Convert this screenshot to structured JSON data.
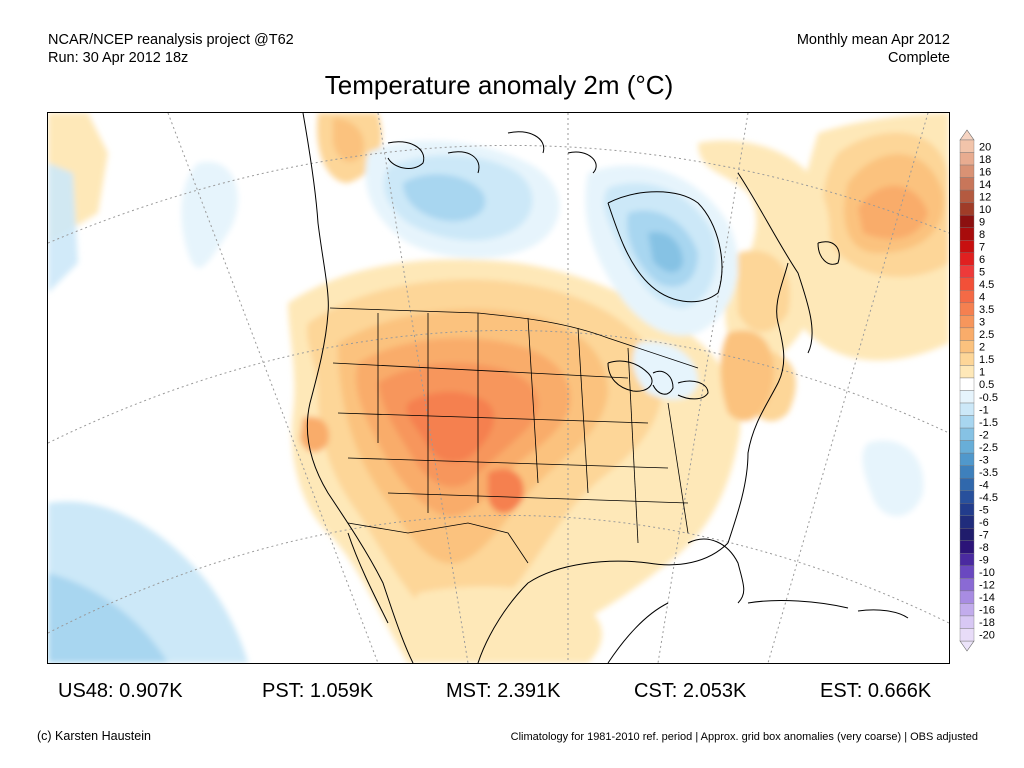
{
  "header": {
    "left_line1": "NCAR/NCEP reanalysis project @T62",
    "left_line2": "Run: 30 Apr 2012 18z",
    "right_line1": "Monthly mean Apr 2012",
    "right_line2": "Complete"
  },
  "title": "Temperature anomaly 2m (°C)",
  "legend": {
    "bins": [
      {
        "label": "20",
        "color": "#f2c4aa"
      },
      {
        "label": "18",
        "color": "#e8ac90"
      },
      {
        "label": "16",
        "color": "#d99274"
      },
      {
        "label": "14",
        "color": "#c8765a"
      },
      {
        "label": "12",
        "color": "#b45a40"
      },
      {
        "label": "10",
        "color": "#a03c28"
      },
      {
        "label": "9",
        "color": "#8c1010"
      },
      {
        "label": "8",
        "color": "#a80c0c"
      },
      {
        "label": "7",
        "color": "#c81010"
      },
      {
        "label": "6",
        "color": "#e02020"
      },
      {
        "label": "5",
        "color": "#ee3a3a"
      },
      {
        "label": "4.5",
        "color": "#f25038"
      },
      {
        "label": "4",
        "color": "#f46a46"
      },
      {
        "label": "3.5",
        "color": "#f58050"
      },
      {
        "label": "3",
        "color": "#f7965c"
      },
      {
        "label": "2.5",
        "color": "#f9ac6a"
      },
      {
        "label": "2",
        "color": "#fbc27e"
      },
      {
        "label": "1.5",
        "color": "#fdd698"
      },
      {
        "label": "1",
        "color": "#fee8b8"
      },
      {
        "label": "0.5",
        "color": "#ffffff"
      },
      {
        "label": "-0.5",
        "color": "#e6f4fc"
      },
      {
        "label": "-1",
        "color": "#cce8f8"
      },
      {
        "label": "-1.5",
        "color": "#a8d6f0"
      },
      {
        "label": "-2",
        "color": "#86c2e4"
      },
      {
        "label": "-2.5",
        "color": "#68aed8"
      },
      {
        "label": "-3",
        "color": "#5098cc"
      },
      {
        "label": "-3.5",
        "color": "#3e80bc"
      },
      {
        "label": "-4",
        "color": "#3068ac"
      },
      {
        "label": "-4.5",
        "color": "#28509c"
      },
      {
        "label": "-5",
        "color": "#223c8c"
      },
      {
        "label": "-6",
        "color": "#202c7c"
      },
      {
        "label": "-7",
        "color": "#201c6c"
      },
      {
        "label": "-8",
        "color": "#2c1478"
      },
      {
        "label": "-9",
        "color": "#4a2aa0"
      },
      {
        "label": "-10",
        "color": "#6a48c0"
      },
      {
        "label": "-12",
        "color": "#8a6ad4"
      },
      {
        "label": "-14",
        "color": "#a88ce2"
      },
      {
        "label": "-16",
        "color": "#c2acec"
      },
      {
        "label": "-18",
        "color": "#d8c8f4"
      },
      {
        "label": "-20",
        "color": "#e8dcf8"
      }
    ],
    "top_arrow_color": "#f6d4c2",
    "bottom_arrow_color": "#ece4fa"
  },
  "stats": [
    {
      "region": "US48",
      "value": "0.907K"
    },
    {
      "region": "PST",
      "value": "1.059K"
    },
    {
      "region": "MST",
      "value": "2.391K"
    },
    {
      "region": "CST",
      "value": "2.053K"
    },
    {
      "region": "EST",
      "value": "0.666K"
    }
  ],
  "footer": {
    "credit": "(c) Karsten Haustein",
    "note": "Climatology for 1981-2010 ref. period | Approx. grid box anomalies (very coarse) | OBS adjusted"
  }
}
